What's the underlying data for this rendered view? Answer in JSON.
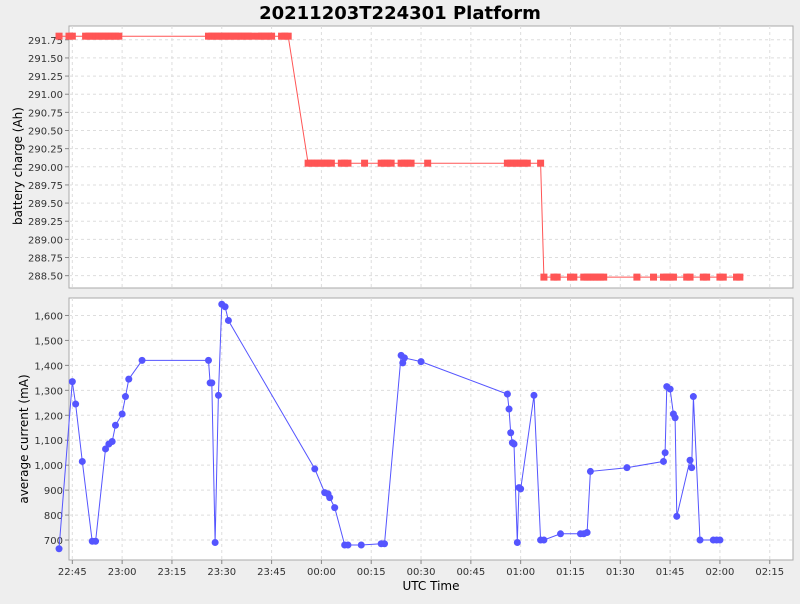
{
  "chart_data": {
    "title": "20211203T224301 Platform",
    "x_axis": {
      "label": "UTC Time",
      "ticks": [
        "22:45",
        "23:00",
        "23:15",
        "23:30",
        "23:45",
        "00:00",
        "00:15",
        "00:30",
        "00:45",
        "01:00",
        "01:15",
        "01:30",
        "01:45",
        "02:00",
        "02:15"
      ],
      "tick_minutes": [
        1365,
        1380,
        1395,
        1410,
        1425,
        1440,
        1455,
        1470,
        1485,
        1500,
        1515,
        1530,
        1545,
        1560,
        1575
      ],
      "range_minutes": [
        1364,
        1582
      ]
    },
    "panels": [
      {
        "type": "line",
        "ylabel": "battery charge (Ah)",
        "yticks": [
          "291.75",
          "291.50",
          "291.25",
          "291.00",
          "290.75",
          "290.50",
          "290.25",
          "290.00",
          "289.75",
          "289.50",
          "289.25",
          "289.00",
          "288.75",
          "288.50"
        ],
        "ytick_values": [
          291.75,
          291.5,
          291.25,
          291.0,
          290.75,
          290.5,
          290.25,
          290.0,
          289.75,
          289.5,
          289.25,
          289.0,
          288.75,
          288.5
        ],
        "ylim": [
          288.33,
          291.94
        ],
        "color": "#ff5555",
        "marker": "square",
        "grid": true,
        "x_minutes": [
          1361,
          1364,
          1365,
          1369,
          1370,
          1371,
          1372,
          1373,
          1374,
          1375,
          1376,
          1377,
          1378,
          1379,
          1406,
          1407,
          1408,
          1409,
          1410,
          1411,
          1412,
          1413,
          1414,
          1415,
          1416,
          1417,
          1418,
          1419,
          1421,
          1422,
          1423,
          1424,
          1425,
          1428,
          1429,
          1430,
          1436,
          1437,
          1438,
          1439,
          1440,
          1441,
          1442,
          1443,
          1446,
          1447,
          1448,
          1453,
          1458,
          1459,
          1460,
          1461,
          1464,
          1465,
          1466,
          1467,
          1472,
          1496,
          1497,
          1498,
          1499,
          1500,
          1501,
          1502,
          1506,
          1507,
          1510,
          1511,
          1515,
          1516,
          1519,
          1520,
          1521,
          1522,
          1523,
          1524,
          1525,
          1535,
          1540,
          1543,
          1544,
          1545,
          1546,
          1550,
          1551,
          1555,
          1556,
          1560,
          1561,
          1565,
          1566
        ],
        "values": [
          291.8,
          291.8,
          291.8,
          291.8,
          291.8,
          291.8,
          291.8,
          291.8,
          291.8,
          291.8,
          291.8,
          291.8,
          291.8,
          291.8,
          291.8,
          291.8,
          291.8,
          291.8,
          291.8,
          291.8,
          291.8,
          291.8,
          291.8,
          291.8,
          291.8,
          291.8,
          291.8,
          291.8,
          291.8,
          291.8,
          291.8,
          291.8,
          291.8,
          291.8,
          291.8,
          291.8,
          290.05,
          290.05,
          290.05,
          290.05,
          290.05,
          290.05,
          290.05,
          290.05,
          290.05,
          290.05,
          290.05,
          290.05,
          290.05,
          290.05,
          290.05,
          290.05,
          290.05,
          290.05,
          290.05,
          290.05,
          290.05,
          290.05,
          290.05,
          290.05,
          290.05,
          290.05,
          290.05,
          290.05,
          290.05,
          288.48,
          288.48,
          288.48,
          288.48,
          288.48,
          288.48,
          288.48,
          288.48,
          288.48,
          288.48,
          288.48,
          288.48,
          288.48,
          288.48,
          288.48,
          288.48,
          288.48,
          288.48,
          288.48,
          288.48,
          288.48,
          288.48,
          288.48,
          288.48,
          288.48,
          288.48
        ]
      },
      {
        "type": "line",
        "ylabel": "average current (mA)",
        "yticks": [
          "1,600",
          "1,500",
          "1,400",
          "1,300",
          "1,200",
          "1,100",
          "1,000",
          "900",
          "800",
          "700"
        ],
        "ytick_values": [
          1600,
          1500,
          1400,
          1300,
          1200,
          1100,
          1000,
          900,
          800,
          700
        ],
        "ylim": [
          620,
          1670
        ],
        "color": "#5555ff",
        "marker": "circle",
        "grid": true,
        "x_minutes": [
          1361,
          1365,
          1366,
          1368,
          1371,
          1372,
          1375,
          1376,
          1377,
          1378,
          1380,
          1381,
          1382,
          1386,
          1406,
          1406.5,
          1407,
          1408,
          1409,
          1410,
          1411,
          1412,
          1438,
          1441,
          1442,
          1442.5,
          1444,
          1447,
          1448,
          1452,
          1458,
          1459,
          1464,
          1464.5,
          1465,
          1470,
          1496,
          1496.5,
          1497,
          1497.5,
          1498,
          1499,
          1499.5,
          1500,
          1504,
          1506,
          1507,
          1512,
          1518,
          1519,
          1520,
          1521,
          1532,
          1543,
          1543.5,
          1544,
          1545,
          1546,
          1546.5,
          1547,
          1551,
          1551.5,
          1552,
          1554,
          1558,
          1559,
          1560
        ],
        "values": [
          665,
          1335,
          1245,
          1015,
          695,
          695,
          1065,
          1085,
          1095,
          1160,
          1205,
          1275,
          1345,
          1420,
          1420,
          1330,
          1330,
          690,
          1280,
          1645,
          1635,
          1580,
          985,
          890,
          885,
          870,
          830,
          680,
          680,
          680,
          685,
          685,
          1440,
          1410,
          1430,
          1415,
          1285,
          1225,
          1130,
          1090,
          1085,
          690,
          910,
          905,
          1280,
          700,
          700,
          725,
          725,
          725,
          730,
          975,
          990,
          1015,
          1050,
          1315,
          1305,
          1205,
          1190,
          795,
          1020,
          990,
          1275,
          700,
          700,
          700,
          700
        ]
      }
    ]
  }
}
